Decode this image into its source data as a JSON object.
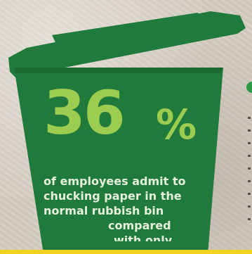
{
  "colors": {
    "bin_green": "#1f7a3b",
    "bin_green_dark": "#17622f",
    "stat_highlight": "#9ccc50",
    "text_light": "#e6f1dc",
    "bottom_bar": "#f2d21f"
  },
  "infographic": {
    "stat_value": "36",
    "stat_unit": "%",
    "lines": [
      "of employees admit to",
      "chucking paper in the",
      "normal rubbish bin",
      "compared",
      "with only"
    ]
  },
  "icons": {
    "bin": "rubbish-bin-icon",
    "leaf": "leaf-icon"
  }
}
